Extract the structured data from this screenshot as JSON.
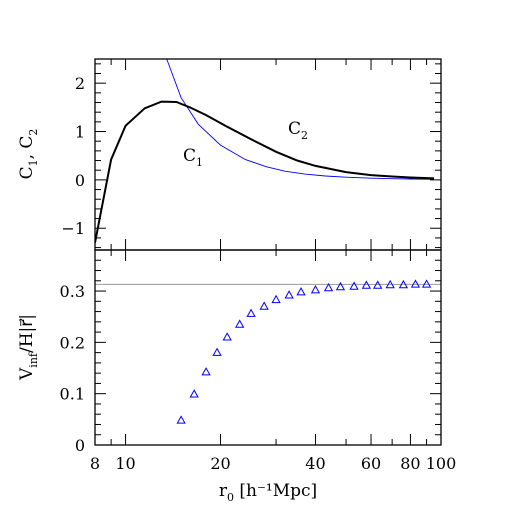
{
  "chart_data": [
    {
      "type": "line",
      "xscale": "log",
      "xlim": [
        8,
        100
      ],
      "ylim": [
        -1.45,
        2.5
      ],
      "ylabel": {
        "main": "C",
        "sub1": "1",
        "sep": ",  C",
        "sub2": "2"
      },
      "yticks": [
        "−1",
        "0",
        "1",
        "2"
      ],
      "ytick_values": [
        -1,
        0,
        1,
        2
      ],
      "series": [
        {
          "name": "C1",
          "label_main": "C",
          "label_sub": "1",
          "color": "#0000ff",
          "x": [
            13.5,
            15,
            17,
            20,
            24,
            28,
            32,
            37,
            43,
            50,
            60,
            70,
            80,
            95
          ],
          "y": [
            2.5,
            1.7,
            1.15,
            0.72,
            0.42,
            0.27,
            0.18,
            0.12,
            0.08,
            0.055,
            0.035,
            0.025,
            0.018,
            0.012
          ]
        },
        {
          "name": "C2",
          "label_main": "C",
          "label_sub": "2",
          "color": "#000000",
          "x": [
            8,
            9,
            10,
            11.5,
            13,
            14.5,
            16,
            18,
            21,
            25,
            30,
            35,
            40,
            50,
            60,
            70,
            80,
            95
          ],
          "y": [
            -1.3,
            0.42,
            1.12,
            1.48,
            1.62,
            1.61,
            1.5,
            1.34,
            1.1,
            0.84,
            0.58,
            0.4,
            0.29,
            0.16,
            0.1,
            0.07,
            0.05,
            0.03
          ]
        }
      ]
    },
    {
      "type": "scatter",
      "xscale": "log",
      "xlim": [
        8,
        100
      ],
      "ylim": [
        0,
        0.38
      ],
      "xlabel": {
        "main": "r",
        "sub": "0",
        "rest": " [h⁻¹Mpc]"
      },
      "ylabel": {
        "main": "V",
        "sub": "inf",
        "rest": "/H|r⃗|"
      },
      "xticks": [
        "8",
        "10",
        "20",
        "40",
        "60",
        "80",
        "100"
      ],
      "xtick_values": [
        8,
        10,
        20,
        40,
        60,
        80,
        100
      ],
      "yticks": [
        "0",
        "0.1",
        "0.2",
        "0.3"
      ],
      "ytick_values": [
        0,
        0.1,
        0.2,
        0.3
      ],
      "hline": {
        "y": 0.313,
        "color": "#999999"
      },
      "series": [
        {
          "color": "#0000ff",
          "marker": "triangle",
          "x": [
            15,
            16.5,
            18,
            19.5,
            21,
            23,
            25,
            27.5,
            30,
            33,
            36,
            40,
            44,
            48,
            53,
            58,
            63,
            69,
            76,
            83,
            90
          ],
          "y": [
            0.048,
            0.099,
            0.142,
            0.18,
            0.21,
            0.235,
            0.256,
            0.27,
            0.283,
            0.292,
            0.298,
            0.302,
            0.306,
            0.308,
            0.309,
            0.311,
            0.311,
            0.312,
            0.312,
            0.313,
            0.313
          ]
        }
      ]
    }
  ]
}
